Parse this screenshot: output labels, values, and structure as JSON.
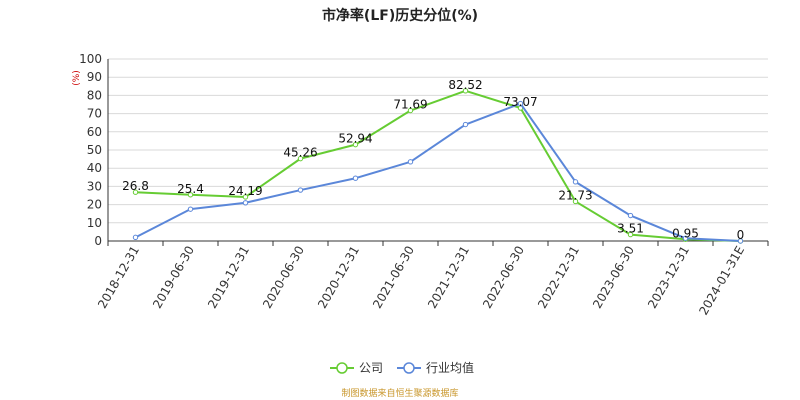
{
  "chart_data": {
    "type": "line",
    "title": "市净率(LF)历史分位(%)",
    "ylabel": "(%)",
    "ylim": [
      0,
      100
    ],
    "ytick_step": 10,
    "grid": true,
    "categories": [
      "2018-12-31",
      "2019-06-30",
      "2019-12-31",
      "2020-06-30",
      "2020-12-31",
      "2021-06-30",
      "2021-12-31",
      "2022-06-30",
      "2022-12-31",
      "2023-06-30",
      "2023-12-31",
      "2024-01-31E"
    ],
    "series": [
      {
        "name": "公司",
        "color": "#66cc33",
        "values": [
          26.8,
          25.4,
          24.19,
          45.26,
          52.94,
          71.69,
          82.52,
          73.07,
          21.73,
          3.51,
          0.95,
          0
        ],
        "labels": [
          "26.8",
          "25.4",
          "24.19",
          "45.26",
          "52.94",
          "71.69",
          "82.52",
          "73.07",
          "21.73",
          "3.51",
          "0.95",
          "0"
        ]
      },
      {
        "name": "行业均值",
        "color": "#5b87d9",
        "values": [
          2,
          17.5,
          21,
          28,
          34.5,
          43.5,
          64,
          75.5,
          32.5,
          14,
          1.5,
          0
        ]
      }
    ],
    "legend_position": "bottom-center"
  },
  "source_note": "制图数据来自恒生聚源数据库"
}
